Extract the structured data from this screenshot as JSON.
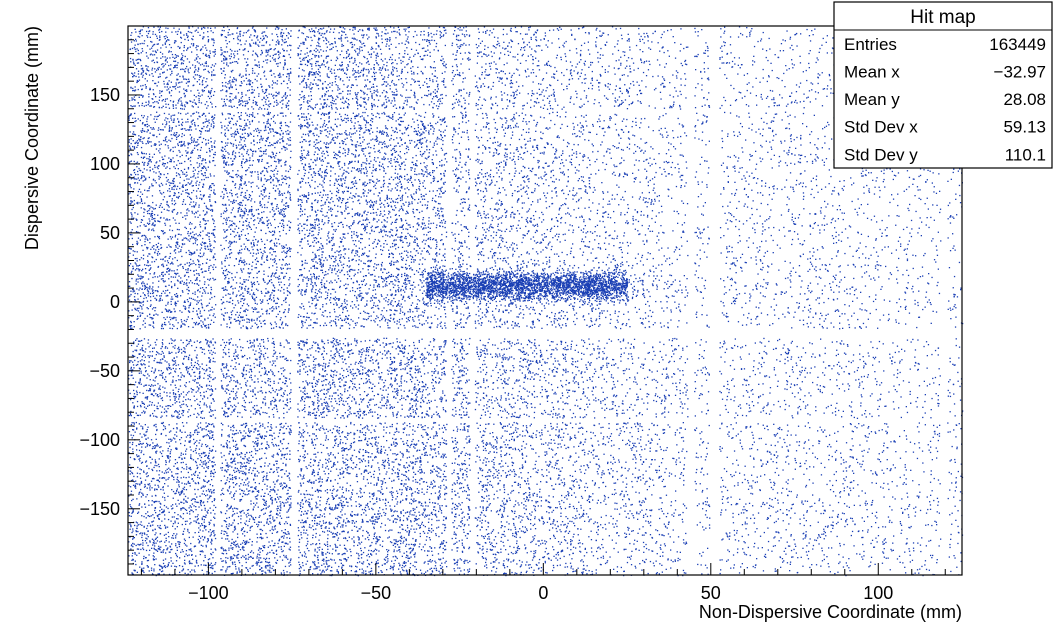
{
  "chart_data": {
    "type": "scatter",
    "title": "",
    "xlabel": "Non-Dispersive Coordinate (mm)",
    "ylabel": "Dispersive Coordinate (mm)",
    "xlim": [
      -124,
      125
    ],
    "ylim": [
      -198,
      200
    ],
    "x_ticks": [
      -100,
      -50,
      0,
      50,
      100
    ],
    "y_ticks": [
      -150,
      -100,
      -50,
      0,
      50,
      100,
      150
    ],
    "x_tick_labels": [
      "−100",
      "−50",
      "0",
      "50",
      "100"
    ],
    "y_tick_labels": [
      "−150",
      "−100",
      "−50",
      "0",
      "50",
      "100",
      "150"
    ],
    "marker_color": "#1a3fb5",
    "grid": false,
    "legend": "none",
    "series": [
      {
        "description_free": true,
        "values_note_free": true,
        "sample_points": [
          {
            "x": -110,
            "y": 150
          },
          {
            "x": -90,
            "y": 20
          },
          {
            "x": -60,
            "y": -120
          },
          {
            "x": -40,
            "y": 12
          },
          {
            "x": -10,
            "y": 10
          },
          {
            "x": 15,
            "y": 14
          },
          {
            "x": 70,
            "y": 100
          },
          {
            "x": 90,
            "y": -150
          },
          {
            "x": 110,
            "y": 50
          }
        ]
      }
    ],
    "stats_box": {
      "title": "Hit map",
      "rows": [
        {
          "label": "Entries",
          "value": "163449"
        },
        {
          "label": "Mean x",
          "value": "−32.97"
        },
        {
          "label": "Mean y",
          "value": "28.08"
        },
        {
          "label": "Std Dev x",
          "value": "59.13"
        },
        {
          "label": "Std Dev y",
          "value": "110.1"
        }
      ]
    }
  }
}
